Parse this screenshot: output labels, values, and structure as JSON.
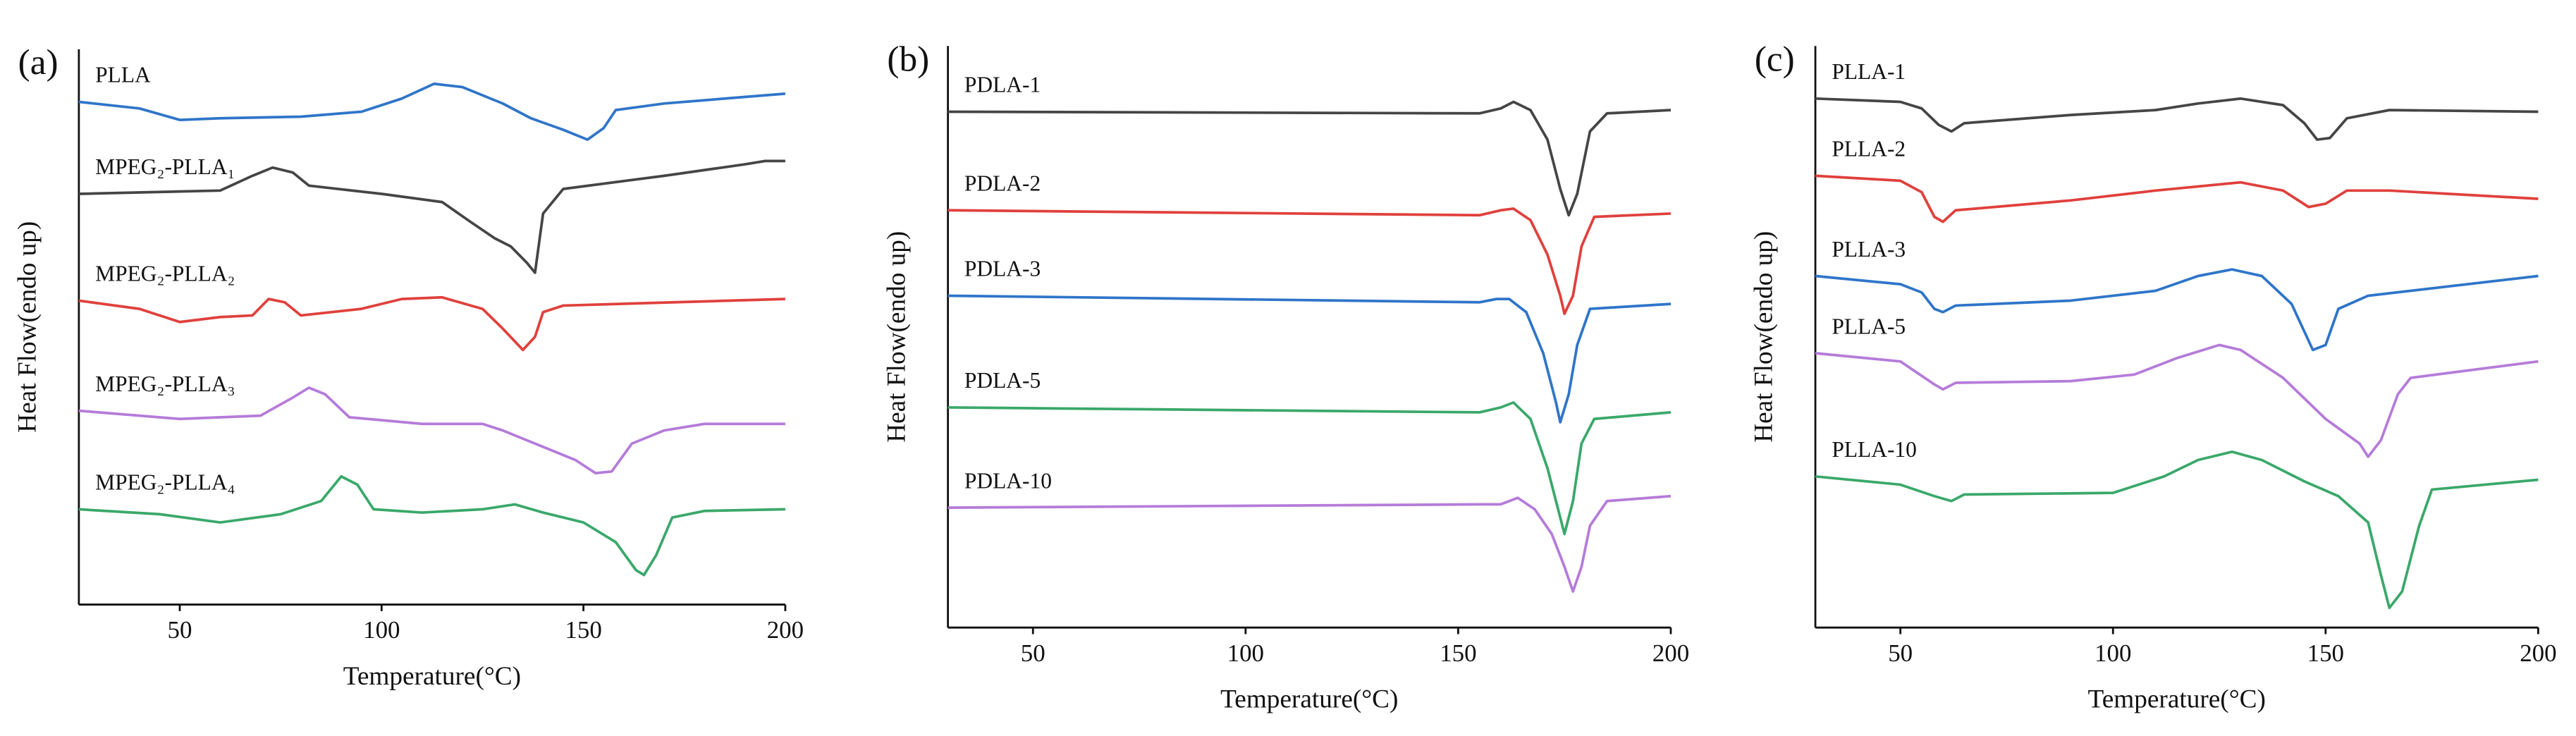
{
  "chart_data": [
    {
      "type": "line",
      "panel": "(a)",
      "xlabel": "Temperature(°C)",
      "ylabel": "Heat Flow(endo up)",
      "xlim": [
        25,
        200
      ],
      "xticks": [
        50,
        100,
        150,
        200
      ],
      "ylim": [
        0,
        338
      ],
      "series": [
        {
          "name": "PLLA",
          "color": "#2f75c9",
          "x": [
            25,
            40,
            50,
            60,
            80,
            95,
            105,
            113,
            120,
            130,
            137,
            145,
            151,
            155,
            158,
            170,
            200
          ],
          "values": [
            306,
            302,
            295,
            296,
            297,
            300,
            308,
            317,
            315,
            305,
            296,
            289,
            283,
            290,
            301,
            305,
            311
          ]
        },
        {
          "name": "MPEG₂-PLLA₁",
          "color": "#454545",
          "x": [
            25,
            60,
            68,
            73,
            78,
            82,
            100,
            115,
            122,
            128,
            132,
            136,
            138,
            140,
            145,
            170,
            190,
            195,
            200
          ],
          "values": [
            250,
            252,
            261,
            266,
            263,
            255,
            250,
            245,
            233,
            223,
            218,
            208,
            202,
            238,
            253,
            261,
            268,
            270,
            270
          ]
        },
        {
          "name": "MPEG₂-PLLA₂",
          "color": "#e0403c",
          "x": [
            25,
            40,
            50,
            60,
            68,
            72,
            76,
            80,
            95,
            105,
            115,
            125,
            130,
            135,
            138,
            140,
            145,
            200
          ],
          "values": [
            185,
            180,
            172,
            175,
            176,
            186,
            184,
            176,
            180,
            186,
            187,
            180,
            168,
            155,
            163,
            178,
            182,
            186
          ]
        },
        {
          "name": "MPEG₂-PLLA₃",
          "color": "#b57bd9",
          "x": [
            25,
            50,
            70,
            78,
            82,
            86,
            92,
            110,
            125,
            130,
            140,
            148,
            153,
            157,
            162,
            170,
            180,
            200
          ],
          "values": [
            118,
            113,
            115,
            126,
            132,
            128,
            114,
            110,
            110,
            106,
            96,
            88,
            80,
            81,
            98,
            106,
            110,
            110
          ]
        },
        {
          "name": "MPEG₂-PLLA₄",
          "color": "#3aa86a",
          "x": [
            25,
            45,
            60,
            75,
            85,
            90,
            94,
            98,
            110,
            125,
            133,
            140,
            150,
            158,
            163,
            165,
            168,
            172,
            180,
            200
          ],
          "values": [
            58,
            55,
            50,
            55,
            63,
            78,
            73,
            58,
            56,
            58,
            61,
            56,
            50,
            38,
            21,
            18,
            30,
            53,
            57,
            58
          ]
        }
      ]
    },
    {
      "type": "line",
      "panel": "(b)",
      "xlabel": "Temperature(°C)",
      "ylabel": "Heat Flow(endo up)",
      "xlim": [
        30,
        200
      ],
      "xticks": [
        50,
        100,
        150,
        200
      ],
      "ylim": [
        -14,
        340
      ],
      "series": [
        {
          "name": "PDLA-1",
          "color": "#454545",
          "x": [
            30,
            155,
            160,
            163,
            167,
            171,
            174,
            176,
            178,
            181,
            185,
            200
          ],
          "values": [
            300,
            299,
            302,
            306,
            301,
            283,
            253,
            237,
            250,
            288,
            299,
            301
          ]
        },
        {
          "name": "PDLA-2",
          "color": "#e0403c",
          "x": [
            30,
            155,
            160,
            163,
            167,
            171,
            174,
            175,
            177,
            179,
            182,
            200
          ],
          "values": [
            240,
            237,
            240,
            241,
            234,
            213,
            188,
            177,
            188,
            218,
            236,
            238
          ]
        },
        {
          "name": "PDLA-3",
          "color": "#2f75c9",
          "x": [
            30,
            155,
            159,
            162,
            166,
            170,
            173,
            174,
            176,
            178,
            181,
            200
          ],
          "values": [
            188,
            184,
            186,
            186,
            178,
            153,
            123,
            111,
            128,
            158,
            180,
            183
          ]
        },
        {
          "name": "PDLA-5",
          "color": "#3aa86a",
          "x": [
            30,
            155,
            160,
            163,
            167,
            171,
            174,
            175,
            177,
            179,
            182,
            200
          ],
          "values": [
            120,
            117,
            120,
            123,
            113,
            83,
            53,
            43,
            63,
            98,
            113,
            117
          ]
        },
        {
          "name": "PDLA-10",
          "color": "#b57bd9",
          "x": [
            30,
            155,
            160,
            164,
            168,
            172,
            175,
            177,
            179,
            181,
            185,
            200
          ],
          "values": [
            59,
            61,
            61,
            65,
            58,
            43,
            23,
            8,
            23,
            48,
            63,
            66
          ]
        }
      ]
    },
    {
      "type": "line",
      "panel": "(c)",
      "xlabel": "Temperature(°C)",
      "ylabel": "Heat Flow(endo up)",
      "xlim": [
        30,
        200
      ],
      "xticks": [
        50,
        100,
        150,
        200
      ],
      "ylim": [
        -14,
        340
      ],
      "series": [
        {
          "name": "PLLA-1",
          "color": "#454545",
          "x": [
            30,
            50,
            55,
            59,
            62,
            65,
            90,
            110,
            120,
            130,
            140,
            145,
            148,
            151,
            155,
            165,
            200
          ],
          "values": [
            308,
            306,
            302,
            292,
            288,
            293,
            298,
            301,
            305,
            308,
            304,
            293,
            283,
            284,
            296,
            301,
            300
          ]
        },
        {
          "name": "PLLA-2",
          "color": "#e0403c",
          "x": [
            30,
            50,
            55,
            58,
            60,
            63,
            90,
            110,
            130,
            140,
            146,
            150,
            155,
            165,
            200
          ],
          "values": [
            261,
            258,
            251,
            236,
            233,
            240,
            246,
            252,
            257,
            252,
            242,
            244,
            252,
            252,
            247
          ]
        },
        {
          "name": "PLLA-3",
          "color": "#2f75c9",
          "x": [
            30,
            50,
            55,
            58,
            60,
            63,
            90,
            110,
            120,
            128,
            135,
            142,
            147,
            150,
            153,
            160,
            200
          ],
          "values": [
            200,
            195,
            190,
            180,
            178,
            182,
            185,
            191,
            200,
            204,
            200,
            183,
            155,
            158,
            180,
            188,
            200
          ]
        },
        {
          "name": "PLLA-5",
          "color": "#b57bd9",
          "x": [
            30,
            50,
            58,
            60,
            63,
            90,
            105,
            115,
            125,
            130,
            140,
            150,
            158,
            160,
            163,
            167,
            170,
            200
          ],
          "values": [
            153,
            148,
            134,
            131,
            135,
            136,
            140,
            150,
            158,
            155,
            138,
            113,
            98,
            90,
            100,
            128,
            138,
            148
          ]
        },
        {
          "name": "PLLA-10",
          "color": "#3aa86a",
          "x": [
            30,
            50,
            58,
            62,
            65,
            100,
            112,
            120,
            128,
            135,
            145,
            153,
            160,
            163,
            165,
            168,
            172,
            175,
            200
          ],
          "values": [
            78,
            73,
            66,
            63,
            67,
            68,
            78,
            88,
            93,
            88,
            75,
            66,
            50,
            18,
            -2,
            8,
            48,
            70,
            76
          ]
        }
      ]
    }
  ]
}
